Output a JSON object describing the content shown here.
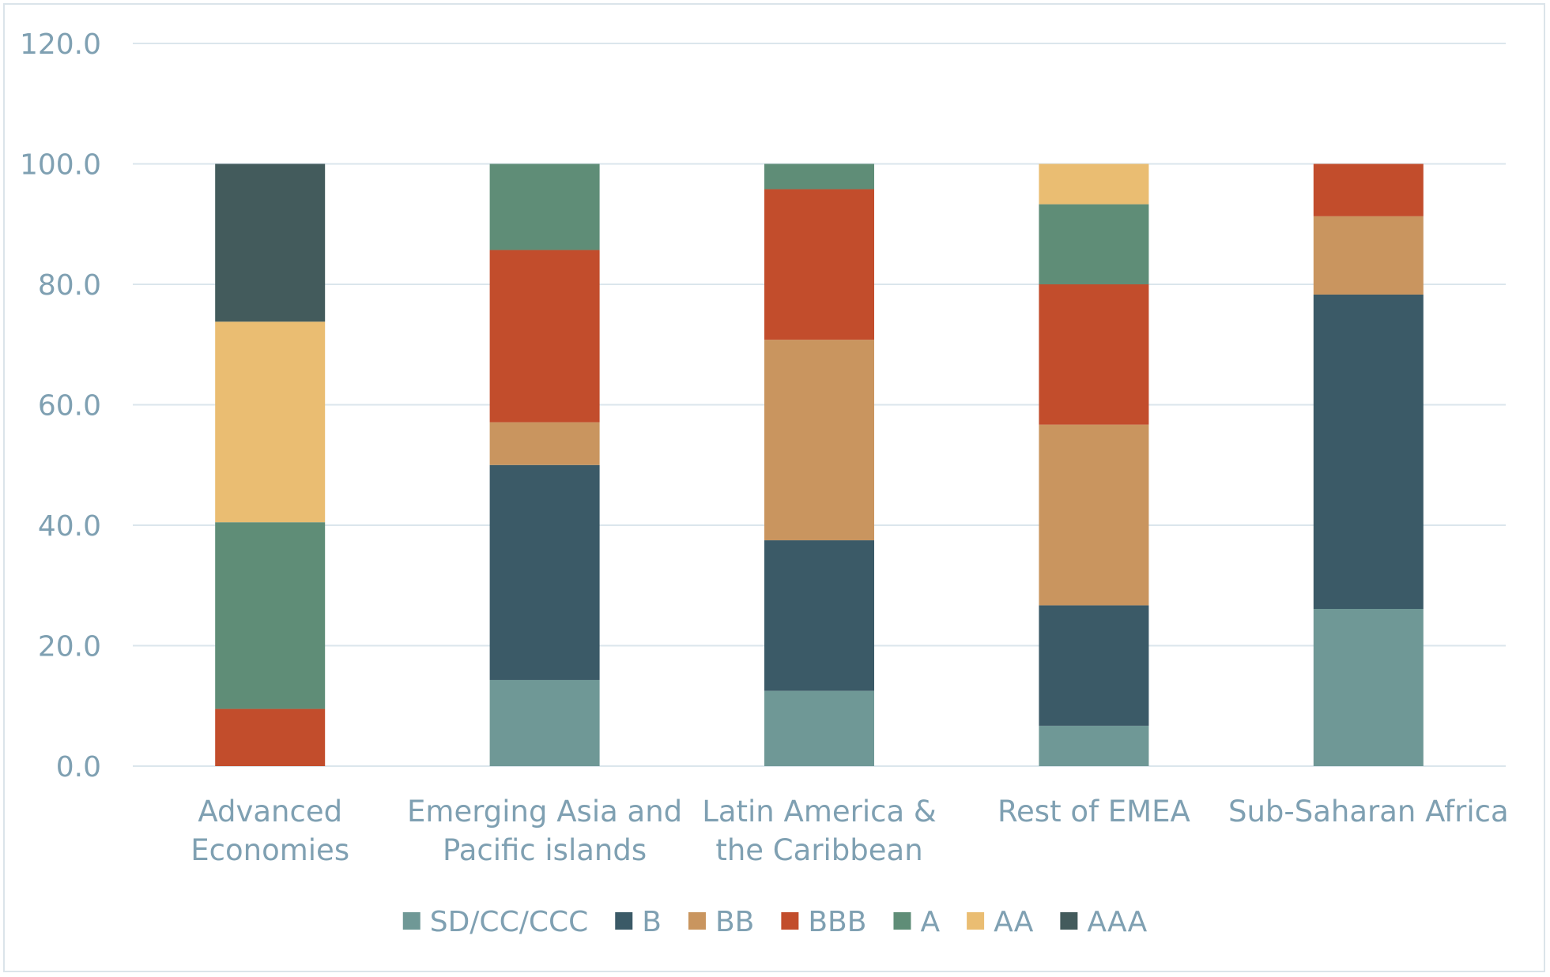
{
  "chart_data": {
    "type": "bar",
    "stacked": true,
    "title": "",
    "xlabel": "",
    "ylabel": "",
    "ylim": [
      0,
      120
    ],
    "yticks": [
      "0.0",
      "20.0",
      "40.0",
      "60.0",
      "80.0",
      "100.0",
      "120.0"
    ],
    "ytick_values": [
      0,
      20,
      40,
      60,
      80,
      100,
      120
    ],
    "grid": true,
    "legend_position": "bottom",
    "categories": [
      [
        "Advanced",
        "Economies"
      ],
      [
        "Emerging Asia and",
        "Pacific islands"
      ],
      [
        "Latin America &",
        "the Caribbean"
      ],
      [
        "Rest of EMEA"
      ],
      [
        "Sub-Saharan Africa"
      ]
    ],
    "series": [
      {
        "name": "SD/CC/CCC",
        "color": "#6f9896",
        "values": [
          0,
          14.3,
          12.5,
          6.7,
          26.1
        ]
      },
      {
        "name": "B",
        "color": "#3b5a67",
        "values": [
          0,
          35.7,
          25.0,
          20.0,
          52.2
        ]
      },
      {
        "name": "BB",
        "color": "#c9955f",
        "values": [
          0,
          7.1,
          33.3,
          30.0,
          13.0
        ]
      },
      {
        "name": "BBB",
        "color": "#c24d2c",
        "values": [
          9.5,
          28.6,
          25.0,
          23.3,
          8.7
        ]
      },
      {
        "name": "A",
        "color": "#5f8d77",
        "values": [
          31.0,
          14.3,
          4.2,
          13.3,
          0
        ]
      },
      {
        "name": "AA",
        "color": "#eabd72",
        "values": [
          33.3,
          0,
          0,
          6.7,
          0
        ]
      },
      {
        "name": "AAA",
        "color": "#435b5c",
        "values": [
          26.2,
          0,
          0,
          0,
          0
        ]
      }
    ]
  },
  "colors": {
    "gridline": "#dbe6ec",
    "text": "#7fa0b2",
    "frame": "#dbe4ea"
  }
}
